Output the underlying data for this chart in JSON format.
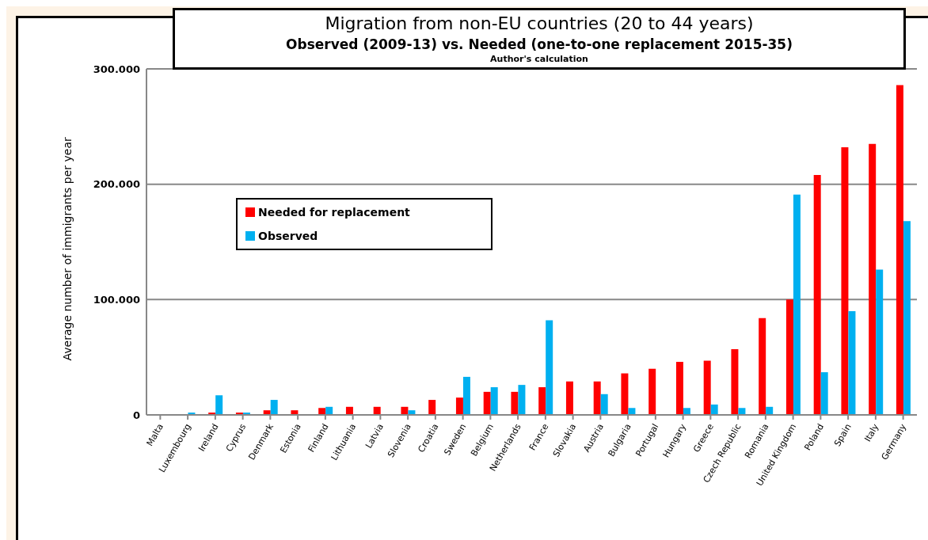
{
  "chart_data": {
    "type": "bar",
    "title": "Migration from non-EU countries (20 to 44 years)",
    "subtitle": "Observed (2009-13) vs. Needed (one-to-one replacement 2015-35)",
    "annotations": [
      "Author's calculation"
    ],
    "ylabel": "Average number of immigrants per year",
    "categories": [
      "Malta",
      "Luxembourg",
      "Ireland",
      "Cyprus",
      "Denmark",
      "Estonia",
      "Finland",
      "Lithuania",
      "Latvia",
      "Slovenia",
      "Croatia",
      "Sweden",
      "Belgium",
      "Netherlands",
      "France",
      "Slovakia",
      "Austria",
      "Bulgaria",
      "Portugal",
      "Hungary",
      "Greece",
      "Czech Republic",
      "Romania",
      "United Kingdom",
      "Poland",
      "Spain",
      "Italy",
      "Germany"
    ],
    "series": [
      {
        "name": "Needed for replacement",
        "color": "#ff0000",
        "values": [
          0,
          0,
          2000,
          2000,
          4000,
          4000,
          6000,
          7000,
          7000,
          7000,
          13000,
          15000,
          20000,
          20000,
          24000,
          29000,
          29000,
          36000,
          40000,
          46000,
          47000,
          57000,
          84000,
          100000,
          208000,
          232000,
          235000,
          286000
        ]
      },
      {
        "name": "Observed",
        "color": "#00b0f0",
        "values": [
          0,
          2000,
          17000,
          2000,
          13000,
          0,
          7000,
          0,
          0,
          4000,
          0,
          33000,
          24000,
          26000,
          82000,
          0,
          18000,
          6000,
          0,
          6000,
          9000,
          6000,
          7000,
          191000,
          37000,
          90000,
          126000,
          168000
        ]
      }
    ],
    "ylim": [
      0,
      300000
    ],
    "yticks": [
      {
        "value": 0,
        "label": "0"
      },
      {
        "value": 100000,
        "label": "100.000"
      },
      {
        "value": 200000,
        "label": "200.000"
      },
      {
        "value": 300000,
        "label": "300.000"
      }
    ],
    "grid": "y",
    "legend": "left"
  }
}
